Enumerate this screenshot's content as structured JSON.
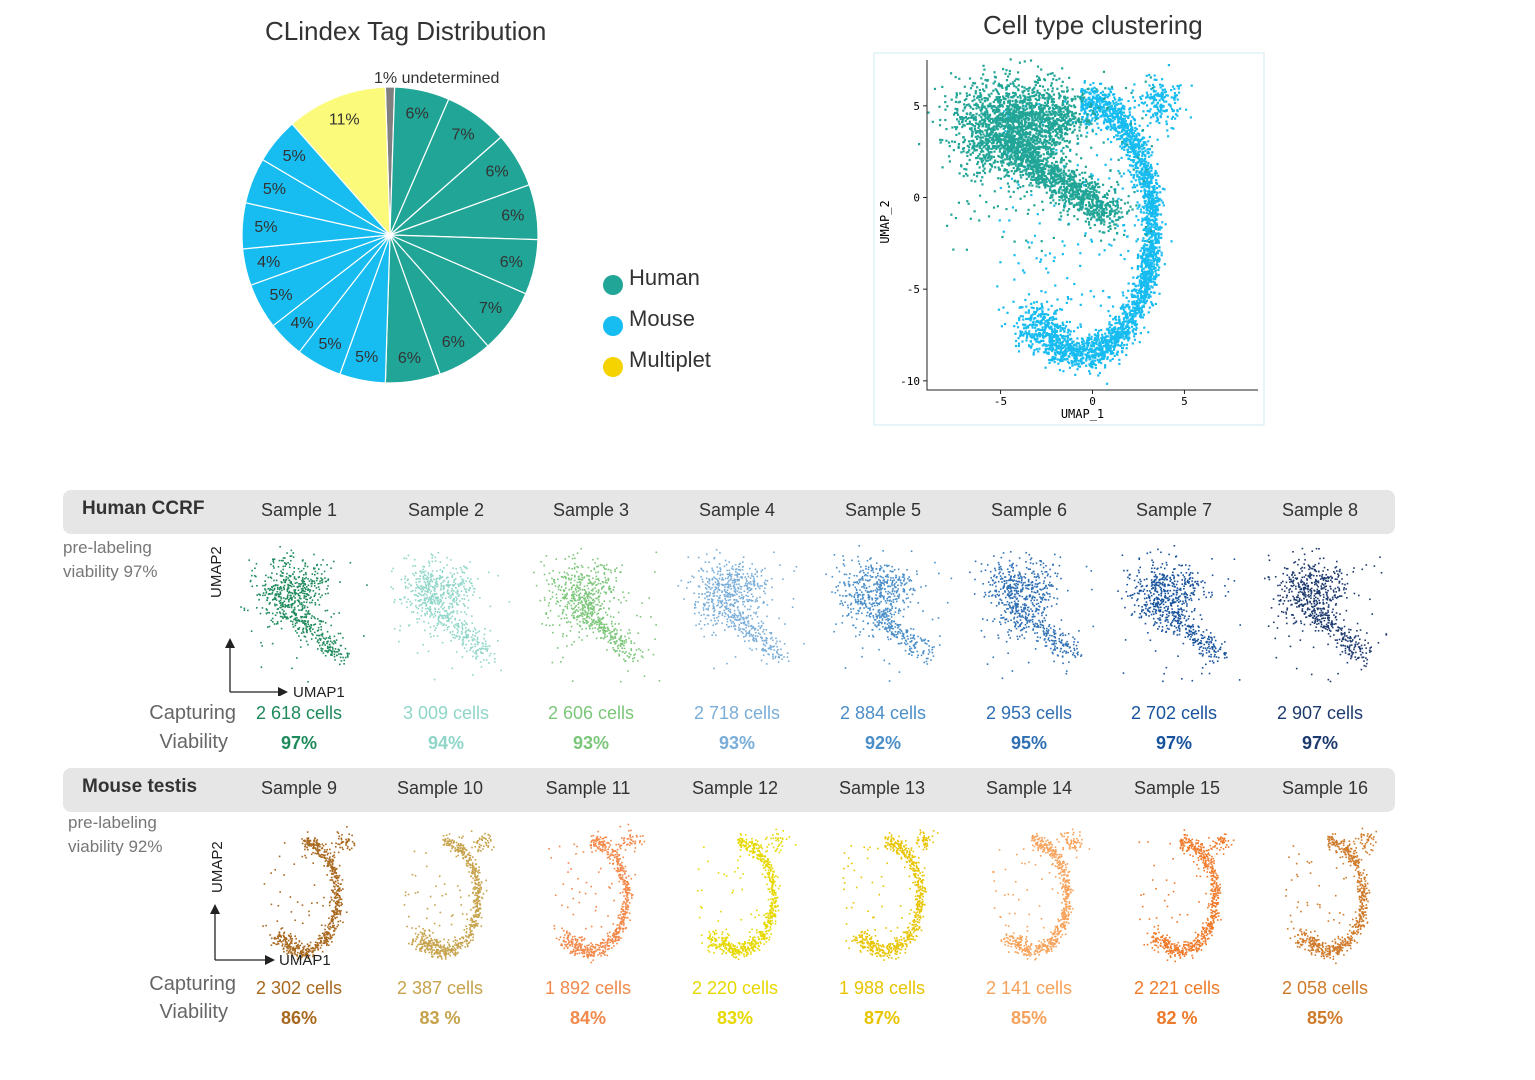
{
  "chart_data": [
    {
      "type": "pie",
      "title": "CLindex Tag Distribution",
      "slices": [
        {
          "label": "undetermined",
          "value": 1,
          "text": "1% undetermined",
          "group": "undetermined"
        },
        {
          "value": 6,
          "text": "6%",
          "group": "Human"
        },
        {
          "value": 7,
          "text": "7%",
          "group": "Human"
        },
        {
          "value": 6,
          "text": "6%",
          "group": "Human"
        },
        {
          "value": 6,
          "text": "6%",
          "group": "Human"
        },
        {
          "value": 6,
          "text": "6%",
          "group": "Human"
        },
        {
          "value": 7,
          "text": "7%",
          "group": "Human"
        },
        {
          "value": 6,
          "text": "6%",
          "group": "Human"
        },
        {
          "value": 6,
          "text": "6%",
          "group": "Human"
        },
        {
          "value": 5,
          "text": "5%",
          "group": "Mouse"
        },
        {
          "value": 5,
          "text": "5%",
          "group": "Mouse"
        },
        {
          "value": 4,
          "text": "4%",
          "group": "Mouse"
        },
        {
          "value": 5,
          "text": "5%",
          "group": "Mouse"
        },
        {
          "value": 4,
          "text": "4%",
          "group": "Mouse"
        },
        {
          "value": 5,
          "text": "5%",
          "group": "Mouse"
        },
        {
          "value": 5,
          "text": "5%",
          "group": "Mouse"
        },
        {
          "value": 5,
          "text": "5%",
          "group": "Mouse"
        },
        {
          "value": 11,
          "text": "11%",
          "group": "Multiplet"
        }
      ],
      "legend": [
        {
          "label": "Human",
          "color": "#21a597"
        },
        {
          "label": "Mouse",
          "color": "#17bcf0"
        },
        {
          "label": "Multiplet",
          "color": "#f5d300"
        }
      ],
      "colors": {
        "Human": "#21a597",
        "Mouse": "#17bcf0",
        "Multiplet": "#fbfa7a",
        "undetermined": "#808080"
      }
    },
    {
      "type": "scatter",
      "title": "Cell type clustering",
      "xlabel": "UMAP_1",
      "ylabel": "UMAP_2",
      "xlim": [
        -9,
        9
      ],
      "ylim": [
        -10.5,
        7.5
      ],
      "xticks": [
        "-5",
        "0",
        "5"
      ],
      "yticks": [
        "5",
        "0",
        "-5",
        "-10"
      ],
      "series": [
        {
          "group": "Human",
          "color": "#21a597"
        },
        {
          "group": "Mouse",
          "color": "#17bcf0"
        }
      ]
    }
  ],
  "human_panel": {
    "title": "Human CCRF",
    "pre_line1": "pre-labeling",
    "pre_line2": "viability 97%",
    "axis_x": "UMAP1",
    "axis_y": "UMAP2",
    "row_capturing": "Capturing",
    "row_viability": "Viability",
    "samples": [
      {
        "name": "Sample 1",
        "cells": "2 618 cells",
        "viability": "97%",
        "color": "#1e8a5c"
      },
      {
        "name": "Sample 2",
        "cells": "3 009 cells",
        "viability": "94%",
        "color": "#8fd6c9"
      },
      {
        "name": "Sample 3",
        "cells": "2 606 cells",
        "viability": "93%",
        "color": "#7cc67a"
      },
      {
        "name": "Sample 4",
        "cells": "2 718 cells",
        "viability": "93%",
        "color": "#7aaed8"
      },
      {
        "name": "Sample 5",
        "cells": "2 884 cells",
        "viability": "92%",
        "color": "#4a8ec8"
      },
      {
        "name": "Sample 6",
        "cells": "2 953 cells",
        "viability": "95%",
        "color": "#2f6fb3"
      },
      {
        "name": "Sample 7",
        "cells": "2 702 cells",
        "viability": "97%",
        "color": "#17529c"
      },
      {
        "name": "Sample 8",
        "cells": "2 907 cells",
        "viability": "97%",
        "color": "#1d3a6e"
      }
    ]
  },
  "mouse_panel": {
    "title": "Mouse testis",
    "pre_line1": "pre-labeling",
    "pre_line2": "viability 92%",
    "axis_x": "UMAP1",
    "axis_y": "UMAP2",
    "row_capturing": "Capturing",
    "row_viability": "Viability",
    "samples": [
      {
        "name": "Sample 9",
        "cells": "2 302 cells",
        "viability": "86%",
        "color": "#a8681e"
      },
      {
        "name": "Sample 10",
        "cells": "2 387 cells",
        "viability": "83 %",
        "color": "#c6a24a"
      },
      {
        "name": "Sample 11",
        "cells": "1 892 cells",
        "viability": "84%",
        "color": "#f2884a"
      },
      {
        "name": "Sample 12",
        "cells": "2 220 cells",
        "viability": "83%",
        "color": "#e6d800"
      },
      {
        "name": "Sample 13",
        "cells": "1 988 cells",
        "viability": "87%",
        "color": "#e8c400"
      },
      {
        "name": "Sample 14",
        "cells": "2 141 cells",
        "viability": "85%",
        "color": "#f7a25a"
      },
      {
        "name": "Sample 15",
        "cells": "2 221 cells",
        "viability": "82 %",
        "color": "#ef7a2a"
      },
      {
        "name": "Sample 16",
        "cells": "2 058 cells",
        "viability": "85%",
        "color": "#cf7a2a"
      }
    ]
  }
}
